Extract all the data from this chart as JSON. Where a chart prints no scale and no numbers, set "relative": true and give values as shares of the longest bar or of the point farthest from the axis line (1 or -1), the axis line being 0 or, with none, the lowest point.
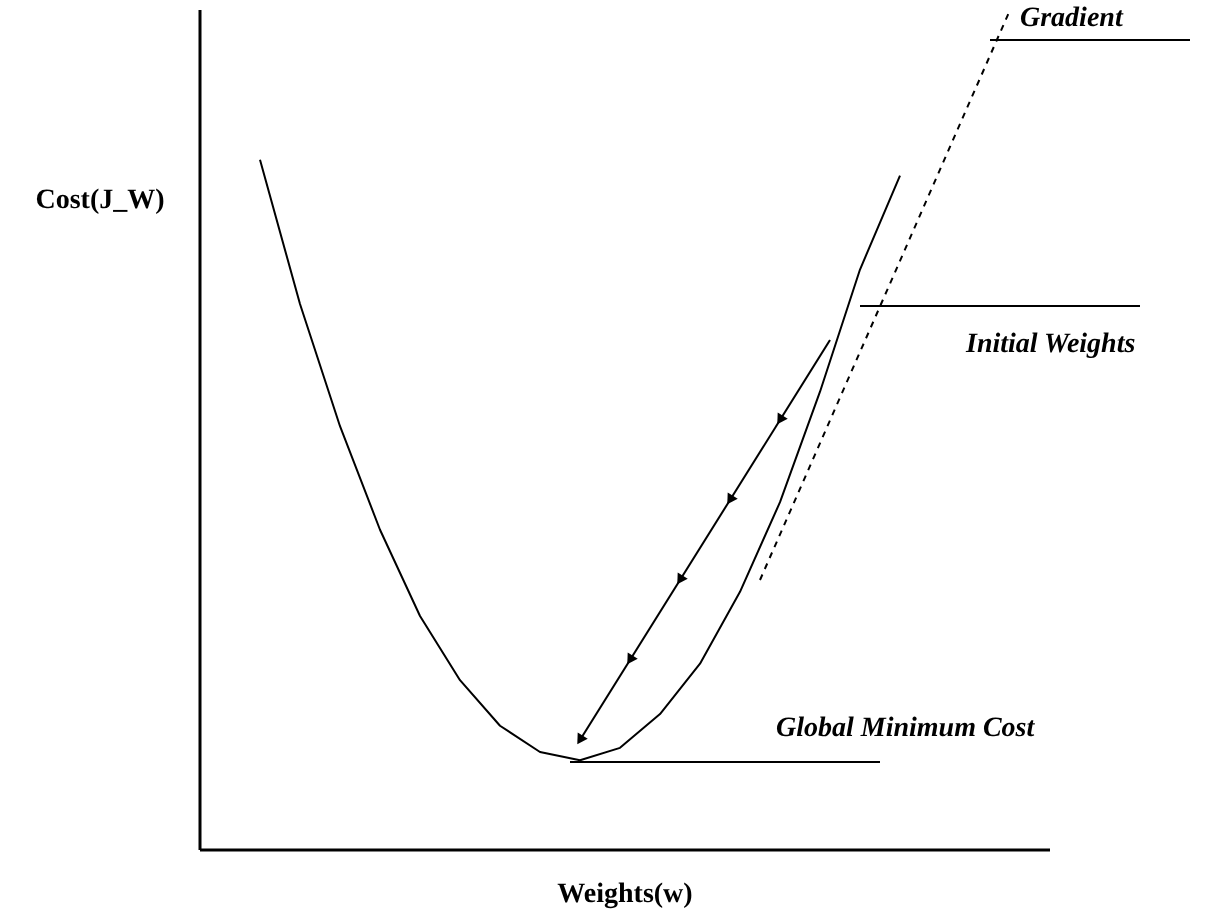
{
  "chart_data": {
    "type": "line",
    "relative": true,
    "xlabel": "Weights(w)",
    "ylabel": "Cost(J_W)",
    "categories": [
      null,
      null,
      null,
      null,
      null,
      null,
      null,
      null,
      null,
      null,
      null,
      null,
      null,
      null,
      null,
      null,
      null
    ],
    "series": [
      {
        "color": "#000000",
        "values": [
          1.0,
          0.791,
          0.614,
          0.464,
          0.339,
          0.246,
          0.18,
          0.142,
          0.13,
          0.148,
          0.197,
          0.27,
          0.374,
          0.504,
          0.664,
          0.841,
          0.977
        ]
      }
    ],
    "annotations": [
      "Gradient",
      "Initial Weights",
      "Global Minimum Cost"
    ]
  }
}
